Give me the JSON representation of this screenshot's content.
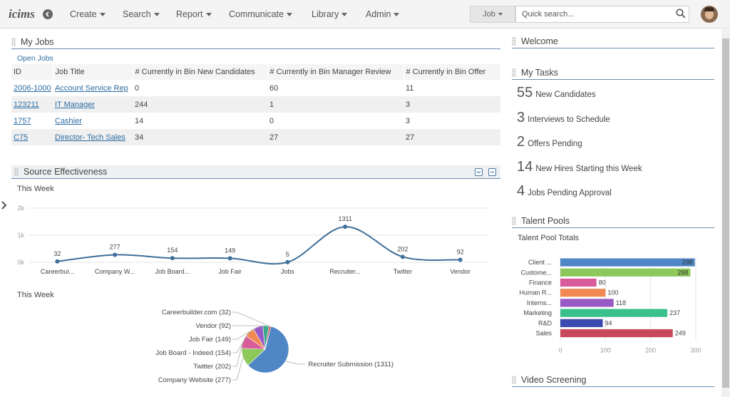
{
  "brand": {
    "logo_text": "icims"
  },
  "nav": {
    "items": [
      {
        "label": "Create"
      },
      {
        "label": "Search"
      },
      {
        "label": "Report"
      },
      {
        "label": "Communicate"
      },
      {
        "label": "Library"
      },
      {
        "label": "Admin"
      }
    ],
    "search_scope": "Job",
    "search_placeholder": "Quick search..."
  },
  "my_jobs": {
    "title": "My Jobs",
    "open_jobs_label": "Open Jobs",
    "columns": [
      "ID",
      "Job Title",
      "# Currently in Bin New Candidates",
      "# Currently in Bin Manager Review",
      "# Currently in Bin Offer"
    ],
    "rows": [
      {
        "id": "2006-1000",
        "title": "Account Service Rep",
        "new": "0",
        "review": "60",
        "offer": "11"
      },
      {
        "id": "123211",
        "title": "IT Manager",
        "new": "244",
        "review": "1",
        "offer": "3"
      },
      {
        "id": "1757",
        "title": "Cashier",
        "new": "14",
        "review": "0",
        "offer": "3"
      },
      {
        "id": "C75",
        "title": "Director- Tech Sales",
        "new": "34",
        "review": "27",
        "offer": "27"
      }
    ]
  },
  "source_effectiveness": {
    "title": "Source Effectiveness",
    "line_subtitle": "This Week",
    "pie_subtitle": "This Week"
  },
  "chart_data": [
    {
      "type": "line",
      "title": "This Week",
      "categories": [
        "Careerbui...",
        "Company W...",
        "Job Board...",
        "Job Fair",
        "Jobs",
        "Recruiter...",
        "Twitter",
        "Vendor"
      ],
      "values": [
        32,
        277,
        154,
        149,
        5,
        1311,
        202,
        92
      ],
      "y_ticks": [
        "0k",
        "1k",
        "2k"
      ],
      "ylim": [
        0,
        2000
      ],
      "grid": true,
      "color": "#3f6f9a"
    },
    {
      "type": "pie",
      "title": "This Week",
      "slices": [
        {
          "label": "Recruiter Submission",
          "value": 1311,
          "color": "#4f86c6"
        },
        {
          "label": "Company Website",
          "value": 277,
          "color": "#8dc85a"
        },
        {
          "label": "Twitter",
          "value": 202,
          "color": "#d85c9a"
        },
        {
          "label": "Job Board - Indeed",
          "value": 154,
          "color": "#f08a52"
        },
        {
          "label": "Job Fair",
          "value": 149,
          "color": "#9a5ac6"
        },
        {
          "label": "Vendor",
          "value": 92,
          "color": "#3aa88a"
        },
        {
          "label": "Careerbuilder.com",
          "value": 32,
          "color": "#c85a5a"
        }
      ]
    },
    {
      "type": "bar",
      "title": "Talent Pool Totals",
      "orientation": "horizontal",
      "categories": [
        "Client ...",
        "Custome...",
        "Finance",
        "Human R...",
        "Interns...",
        "Marketing",
        "R&D",
        "Sales"
      ],
      "values": [
        298,
        288,
        80,
        100,
        118,
        237,
        94,
        249
      ],
      "colors": [
        "#4f86c6",
        "#8dc85a",
        "#d85c9a",
        "#f08a52",
        "#9a5ac6",
        "#3ac08a",
        "#3a4ab0",
        "#c84a5a"
      ],
      "x_ticks": [
        "0",
        "100",
        "200",
        "300"
      ],
      "xlim": [
        0,
        300
      ],
      "grid": true
    }
  ],
  "right": {
    "welcome_title": "Welcome",
    "tasks_title": "My Tasks",
    "tasks": [
      {
        "num": "55",
        "label": "New Candidates"
      },
      {
        "num": "3",
        "label": "Interviews to Schedule"
      },
      {
        "num": "2",
        "label": "Offers Pending"
      },
      {
        "num": "14",
        "label": "New Hires Starting this Week"
      },
      {
        "num": "4",
        "label": "Jobs Pending Approval"
      }
    ],
    "talent_title": "Talent Pools",
    "talent_subtitle": "Talent Pool Totals",
    "video_title": "Video Screening"
  }
}
